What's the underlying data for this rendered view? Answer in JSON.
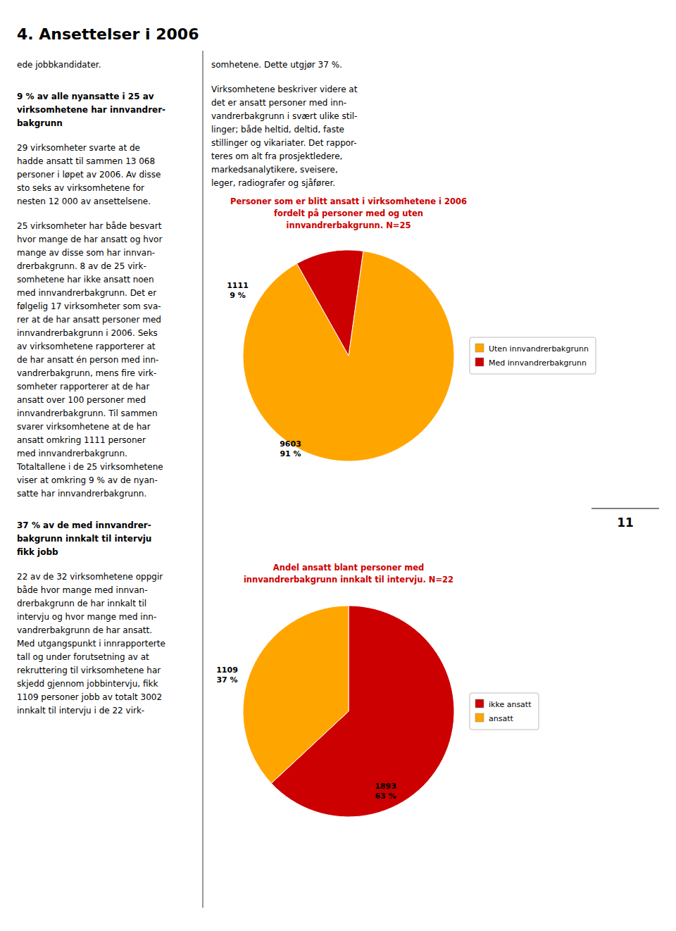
{
  "chart_data": [
    {
      "type": "pie",
      "title": "Personer som er blitt ansatt i virksomhetene i 2006\nfordelt på personer med og uten\ninnvandrerbakgrunn. N=25",
      "categories": [
        "Uten innvandrerbakgrunn",
        "Med innvandrerbakgrunn"
      ],
      "values": [
        9603,
        1111
      ],
      "value_labels": [
        "9603\n91 %",
        "1111\n9 %"
      ],
      "colors": [
        "#FFA500",
        "#CC0000"
      ],
      "data_labels": true,
      "legend": "right"
    },
    {
      "type": "pie",
      "title": "Andel ansatt blant personer med\ninnvandrerbakgrunn innkalt til intervju. N=22",
      "categories": [
        "ikke ansatt",
        "ansatt"
      ],
      "values": [
        1893,
        1109
      ],
      "value_labels": [
        "1893\n63 %",
        "1109\n37 %"
      ],
      "colors": [
        "#CC0000",
        "#FFA500"
      ],
      "data_labels": true,
      "legend": "right"
    }
  ],
  "page": {
    "title": "4. Ansettelser i 2006",
    "page_number": "11",
    "left_texts": [
      {
        "text": "ede jobbkandidater.",
        "bold": false
      },
      {
        "text": "9 % av alle nyansatte i 25 av\nvirksomhetene har innvandrer-\nbakgrunn",
        "bold": true
      },
      {
        "text": "29 virksomheter svarte at de\nhadde ansatt til sammen 13 068\npersoner i løpet av 2006. Av disse\nsto seks av virksomhetene for\nnesten 12 000 av ansettelsene.",
        "bold": false
      },
      {
        "text": "25 virksomheter har både besvart\nhvor mange de har ansatt og hvor\nmange av disse som har innvan-\ndrerbakgrunn. 8 av de 25 virk-\nsomhetene har ikke ansatt noen\nmed innvandrerbakgrunn. Det er\nfølgelig 17 virksomheter som sva-\nrer at de har ansatt personer med\ninnvandrerbakgrunn i 2006. Seks\nav virksomhetene rapporterer at\nde har ansatt én person med inn-\nvandrerbakgrunn, mens fire virk-\nsomheter rapporterer at de har\nansatt over 100 personer med\ninnvandrerbakgrunn. Til sammen\nsvarer virksomhetene at de har\nansatt omkring 1111 personer\nmed innvandrerbakgrunn.\nTotaltallene i de 25 virksomhetene\nviser at omkring 9 % av de nyan-\nsatte har innvandrerbakgrunn.",
        "bold": false
      },
      {
        "text": "37 % av de med innvandrer-\nbakgrunn innkalt til intervju\nfikk jobb",
        "bold": true
      },
      {
        "text": "22 av de 32 virksomhetene oppgir\nbåde hvor mange med innvan-\ndrerbakgrunn de har innkalt til\nintervju og hvor mange med inn-\nvandrerbakgrunn de har ansatt.\nMed utgangspunkt i innrapporterte\ntall og under forutsetning av at\nrekruttering til virksomhetene har\nskjedd gjennom jobbintervju, fikk\n1109 personer jobb av totalt 3002\ninnkalt til intervju i de 22 virk-",
        "bold": false
      }
    ],
    "right_texts": [
      {
        "text": "somhetene. Dette utgjør 37 %.",
        "bold": false
      },
      {
        "text": "Virksomhetene beskriver videre at\ndet er ansatt personer med inn-\nvandrerbakgrunn i svært ulike stil-\nlinger; både heltid, deltid, faste\nstillinger og vikariater. Det rappor-\nteres om alt fra prosjektledere,\nmarkedsanalytikere, sveisere,\nleger, radiografer og sjåfører.",
        "bold": false
      }
    ]
  }
}
